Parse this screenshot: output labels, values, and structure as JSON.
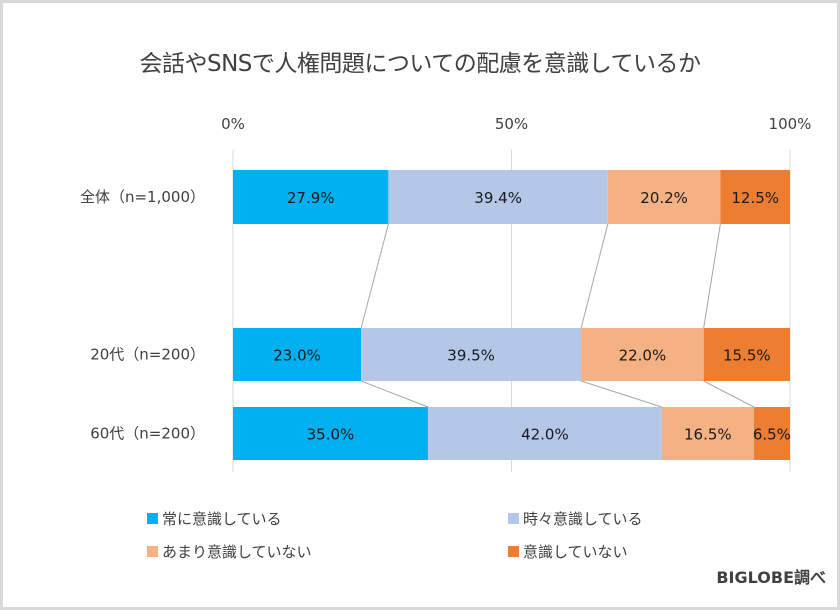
{
  "chart_data": {
    "type": "bar",
    "orientation": "horizontal-stacked-100",
    "title": "会話やSNSで人権問題についての配慮を意識しているか",
    "xlabel": "",
    "ylabel": "",
    "xlim": [
      0,
      100
    ],
    "grid": true,
    "tick_labels": [
      "0%",
      "50%",
      "100%"
    ],
    "ticks": [
      0,
      50,
      100
    ],
    "categories": [
      "全体（n=1,000）",
      "20代（n=200）",
      "60代（n=200）"
    ],
    "series": [
      {
        "name": "常に意識している",
        "color": "#00b0f0",
        "values": [
          27.9,
          23.0,
          35.0
        ],
        "labels": [
          "27.9%",
          "23.0%",
          "35.0%"
        ]
      },
      {
        "name": "時々意識している",
        "color": "#b4c7e7",
        "values": [
          39.4,
          39.5,
          42.0
        ],
        "labels": [
          "39.4%",
          "39.5%",
          "42.0%"
        ]
      },
      {
        "name": "あまり意識していない",
        "color": "#f4b183",
        "values": [
          20.2,
          22.0,
          16.5
        ],
        "labels": [
          "20.2%",
          "22.0%",
          "16.5%"
        ]
      },
      {
        "name": "意識していない",
        "color": "#ed7d31",
        "values": [
          12.5,
          15.5,
          6.5
        ],
        "labels": [
          "12.5%",
          "15.5%",
          "6.5%"
        ]
      }
    ],
    "legend_position": "bottom",
    "series_lines": true
  },
  "source": "BIGLOBE調べ"
}
